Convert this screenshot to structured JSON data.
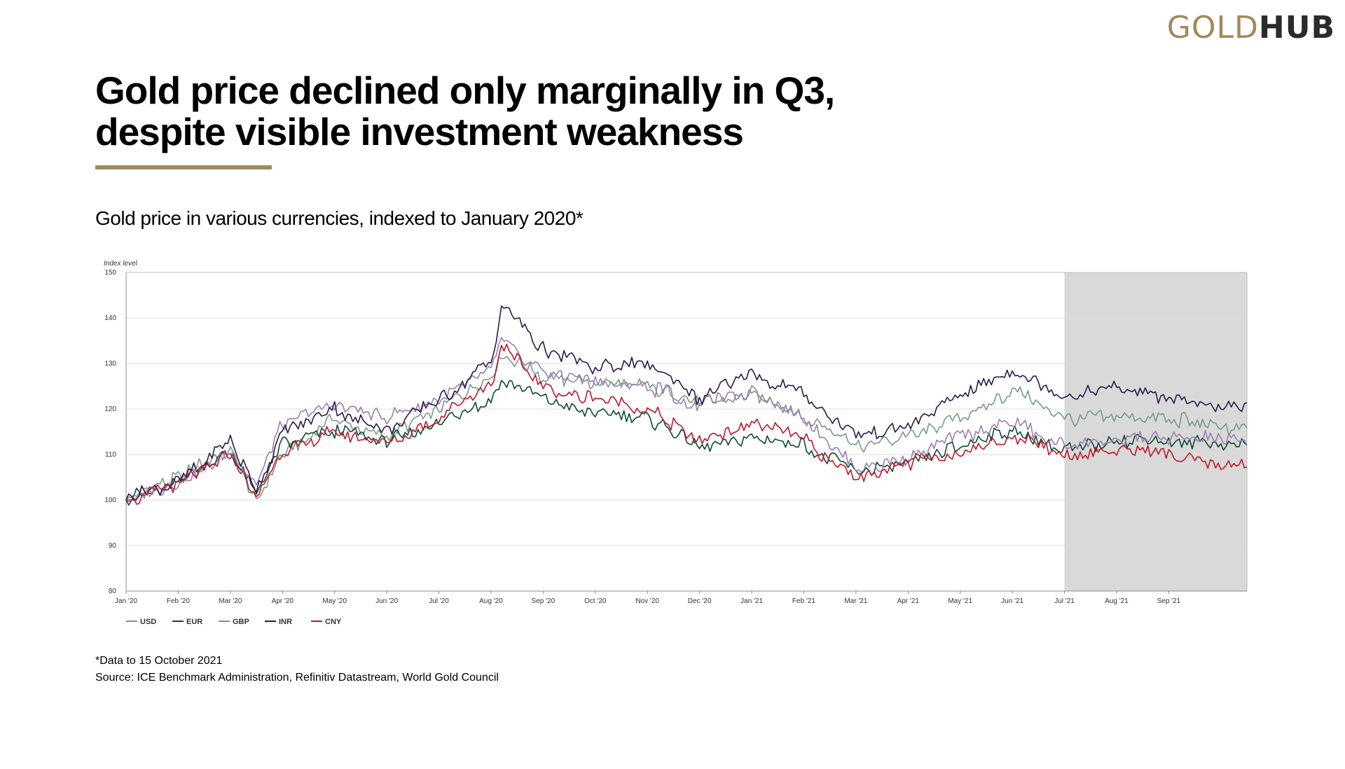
{
  "logo": {
    "part1": "GOLD",
    "part2": "HUB"
  },
  "header": {
    "title_line1": "Gold price declined only marginally in Q3,",
    "title_line2": "despite visible investment weakness",
    "subtitle": "Gold price in various currencies, indexed to January 2020*"
  },
  "footnote": {
    "note": "*Data to 15 October 2021",
    "source": "Source: ICE Benchmark Administration, Refinitiv Datastream, World Gold Council"
  },
  "chart_data": {
    "type": "line",
    "ylabel": "Index level",
    "ylim": [
      80,
      150
    ],
    "yticks": [
      80,
      90,
      100,
      110,
      120,
      130,
      140,
      150
    ],
    "x_tick_labels": [
      "Jan '20",
      "Feb '20",
      "Mar '20",
      "Apr '20",
      "May '20",
      "Jun '20",
      "Jul '20",
      "Aug '20",
      "Sep '20",
      "Oct '20",
      "Nov '20",
      "Dec '20",
      "Jan '21",
      "Feb '21",
      "Mar '21",
      "Apr '21",
      "May '21",
      "Jun '21",
      "Jul '21",
      "Aug '21",
      "Sep '21"
    ],
    "highlight": {
      "from": "Jul '21",
      "to": "15 Oct '21",
      "color": "#d9d9d9"
    },
    "grid": true,
    "legend_position": "bottom-left",
    "x": [
      "Jan '20",
      "Feb '20",
      "Mar '20",
      "Mar '20 (mid)",
      "Apr '20",
      "May '20",
      "Jun '20",
      "Jul '20",
      "Aug '20 (early)",
      "Aug '20 (peak)",
      "Sep '20",
      "Oct '20",
      "Nov '20",
      "Dec '20",
      "Jan '21",
      "Feb '21",
      "Mar '21",
      "Apr '21",
      "May '21",
      "Jun '21",
      "Jul '21",
      "Aug '21",
      "Sep '21",
      "Oct '21"
    ],
    "series": [
      {
        "name": "USD",
        "color": "#7a9a88",
        "values": [
          100,
          105,
          111,
          99,
          110,
          118,
          114,
          120,
          128,
          132,
          127,
          126,
          125,
          121,
          124,
          118,
          112,
          114,
          118,
          124,
          118,
          118,
          118,
          115
        ]
      },
      {
        "name": "EUR",
        "color": "#0e4a33",
        "values": [
          100,
          104,
          111,
          101,
          112,
          115,
          113,
          117,
          122,
          126,
          122,
          119,
          118,
          112,
          114,
          112,
          106,
          108,
          112,
          115,
          111,
          113,
          113,
          112
        ]
      },
      {
        "name": "GBP",
        "color": "#9a7fb0",
        "values": [
          100,
          104,
          110,
          104,
          117,
          121,
          118,
          122,
          128,
          135,
          128,
          126,
          125,
          121,
          124,
          118,
          107,
          109,
          114,
          117,
          112,
          113,
          114,
          113
        ]
      },
      {
        "name": "INR",
        "color": "#2b1a4a",
        "values": [
          100,
          104,
          113,
          102,
          115,
          120,
          115,
          122,
          130,
          143,
          133,
          129,
          130,
          122,
          128,
          123,
          114,
          117,
          123,
          128,
          123,
          125,
          122,
          120
        ]
      },
      {
        "name": "CNY",
        "color": "#c0162b",
        "values": [
          100,
          103,
          110,
          100,
          111,
          115,
          112,
          118,
          125,
          134,
          125,
          122,
          120,
          113,
          117,
          113,
          105,
          108,
          110,
          114,
          110,
          111,
          110,
          107
        ]
      }
    ]
  }
}
